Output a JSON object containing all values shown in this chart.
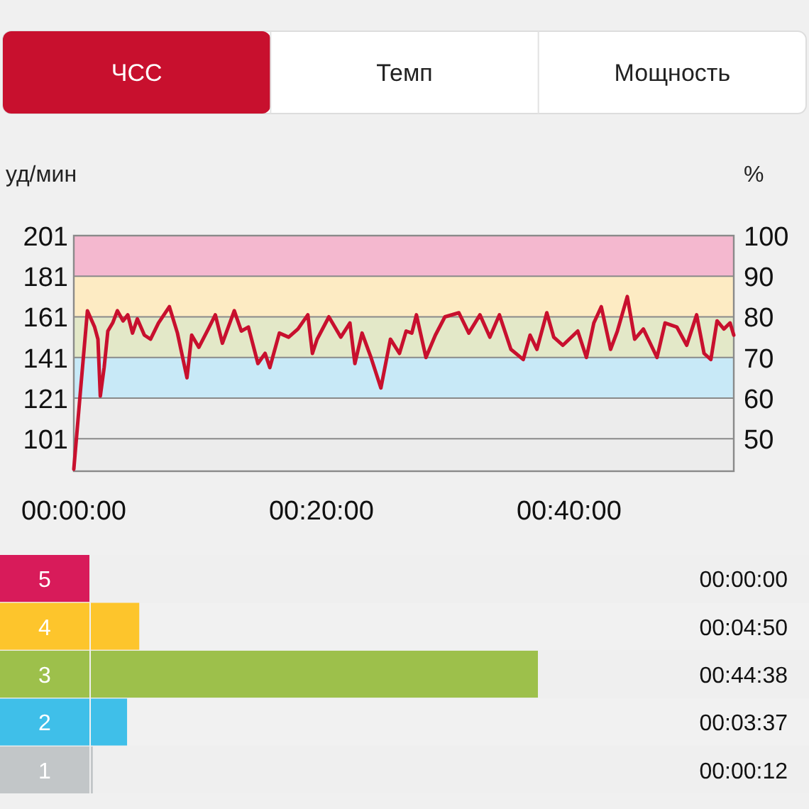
{
  "chart_data": [
    {
      "type": "other",
      "annotations": [
        "ЧСС",
        "Темп",
        "Мощность"
      ]
    },
    {
      "type": "line",
      "ylabel": "уд/мин",
      "y2label": "%",
      "xlim": [
        0,
        53.3
      ],
      "xticks": [
        {
          "value": 0,
          "label": "00:00:00"
        },
        {
          "value": 20,
          "label": "00:20:00"
        },
        {
          "value": 40,
          "label": "00:40:00"
        }
      ],
      "ylim": [
        85,
        201
      ],
      "yticks": [
        101,
        121,
        141,
        161,
        181,
        201
      ],
      "y2lim": [
        42,
        100
      ],
      "y2ticks": [
        50,
        60,
        70,
        80,
        90,
        100
      ],
      "grid": "y",
      "bands": [
        {
          "axis": "y",
          "from": 181,
          "to": 201,
          "color": "#f4b8cf"
        },
        {
          "axis": "y",
          "from": 161,
          "to": 181,
          "color": "#fdebc3"
        },
        {
          "axis": "y",
          "from": 141,
          "to": 161,
          "color": "#e3e8c8"
        },
        {
          "axis": "y",
          "from": 121,
          "to": 141,
          "color": "#c8e9f7"
        }
      ],
      "series": [
        {
          "color": "#c8102e",
          "x": [
            0,
            0.53,
            1.1,
            1.68,
            1.95,
            2.14,
            2.45,
            2.75,
            3.14,
            3.52,
            3.98,
            4.36,
            4.74,
            5.13,
            5.7,
            6.2,
            6.84,
            7.72,
            8.37,
            9.14,
            9.52,
            10.1,
            10.86,
            11.43,
            12.0,
            12.96,
            13.53,
            14.1,
            14.87,
            15.45,
            15.83,
            16.6,
            17.35,
            18.1,
            18.9,
            19.27,
            19.65,
            20.6,
            21.56,
            22.3,
            22.7,
            23.28,
            24.0,
            24.8,
            25.57,
            26.3,
            26.84,
            27.3,
            27.67,
            28.44,
            29.2,
            29.97,
            31.1,
            31.9,
            32.8,
            33.6,
            34.37,
            35.3,
            36.3,
            36.85,
            37.4,
            38.2,
            38.76,
            39.5,
            40.7,
            41.4,
            42.0,
            42.6,
            43.35,
            43.9,
            44.7,
            45.3,
            46.0,
            47.1,
            47.75,
            48.7,
            49.5,
            50.3,
            50.9,
            51.45,
            51.95,
            52.5,
            53.0,
            53.3
          ],
          "values": [
            86,
            124,
            164,
            156,
            150,
            122,
            136,
            154,
            158,
            164,
            159,
            162,
            153,
            160,
            152,
            150,
            158,
            166,
            153,
            131,
            152,
            146,
            155,
            162,
            148,
            164,
            154,
            156,
            138,
            143,
            136,
            153,
            151,
            155,
            162,
            143,
            150,
            161,
            151,
            158,
            138,
            153,
            141,
            126,
            150,
            143,
            154,
            153,
            162,
            141,
            152,
            161,
            163,
            153,
            162,
            151,
            162,
            145,
            140,
            152,
            145,
            163,
            151,
            147,
            154,
            141,
            158,
            166,
            145,
            154,
            171,
            150,
            155,
            141,
            158,
            156,
            147,
            162,
            143,
            140,
            159,
            155,
            158,
            152
          ]
        }
      ]
    },
    {
      "type": "bar",
      "orientation": "horizontal",
      "categories": [
        "5",
        "4",
        "3",
        "2",
        "1"
      ],
      "values": [
        0,
        290,
        2678,
        217,
        12
      ],
      "colors": [
        "#d81b5a",
        "#fdc52c",
        "#9dc04b",
        "#3fbfe9",
        "#c2c6c8"
      ],
      "value_labels": [
        "00:00:00",
        "00:04:50",
        "00:44:38",
        "00:03:37",
        "00:00:12"
      ]
    }
  ]
}
